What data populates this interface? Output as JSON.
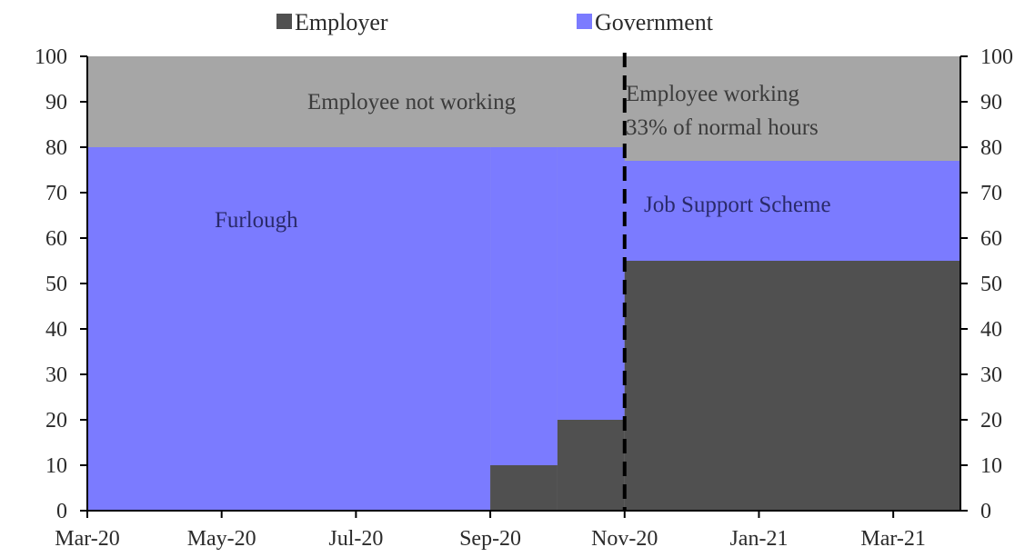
{
  "chart_data": {
    "type": "area",
    "x_labels": [
      "Mar-20",
      "May-20",
      "Jul-20",
      "Sep-20",
      "Nov-20",
      "Jan-21",
      "Mar-21"
    ],
    "xlim": [
      "Mar-20",
      "Apr-21"
    ],
    "ylim": [
      0,
      100
    ],
    "y_ticks": [
      0,
      10,
      20,
      30,
      40,
      50,
      60,
      70,
      80,
      90,
      100
    ],
    "left_axis_labels": [
      "0",
      "10",
      "20",
      "30",
      "40",
      "50",
      "60",
      "70",
      "80",
      "90",
      "100"
    ],
    "right_axis_labels": [
      "0",
      "10",
      "20",
      "30",
      "40",
      "50",
      "60",
      "70",
      "80",
      "90",
      "100"
    ],
    "legend_position": "top",
    "legend": [
      {
        "label": "Employer",
        "color": "#505050"
      },
      {
        "label": "Government",
        "color": "#7b7bff"
      }
    ],
    "background_color": "#a6a6a6",
    "segments": [
      {
        "start": "Mar-20",
        "end": "Sep-20",
        "employer": 0,
        "government": 80
      },
      {
        "start": "Sep-20",
        "end": "Oct-20",
        "employer": 10,
        "government": 70
      },
      {
        "start": "Oct-20",
        "end": "Nov-20",
        "employer": 20,
        "government": 60
      },
      {
        "start": "Nov-20",
        "end": "Apr-21",
        "employer": 55,
        "government": 22
      }
    ],
    "divider_at": "Nov-20",
    "annotations": [
      {
        "text": "Employee not working"
      },
      {
        "text": "Employee working"
      },
      {
        "text": "33% of normal hours"
      },
      {
        "text": "Furlough"
      },
      {
        "text": "Job Support Scheme"
      }
    ]
  }
}
